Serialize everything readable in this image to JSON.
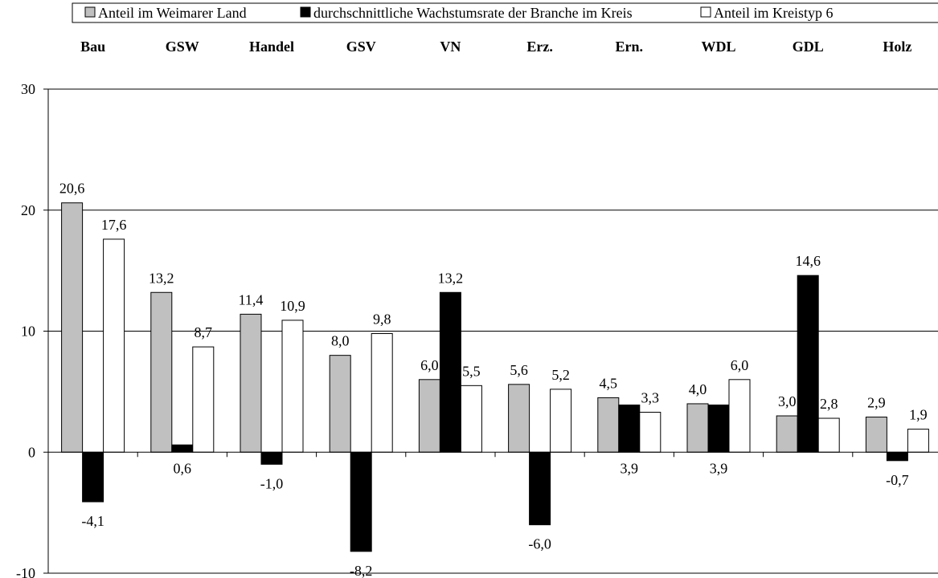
{
  "chart_data": {
    "type": "bar",
    "categories": [
      "Bau",
      "GSW",
      "Handel",
      "GSV",
      "VN",
      "Erz.",
      "Ern.",
      "WDL",
      "GDL",
      "Holz"
    ],
    "series": [
      {
        "name": "Anteil im Weimarer Land",
        "color": "#c0c0c0",
        "values": [
          20.6,
          13.2,
          11.4,
          8.0,
          6.0,
          5.6,
          4.5,
          4.0,
          3.0,
          2.9
        ],
        "labels": [
          "20,6",
          "13,2",
          "11,4",
          "8,0",
          "6,0",
          "5,6",
          "4,5",
          "4,0",
          "3,0",
          "2,9"
        ]
      },
      {
        "name": "durchschnittliche Wachstumsrate der Branche im Kreis",
        "color": "#000000",
        "values": [
          -4.1,
          0.6,
          -1.0,
          -8.2,
          13.2,
          -6.0,
          3.9,
          3.9,
          14.6,
          -0.7
        ],
        "labels": [
          "-4,1",
          "0,6",
          "-1,0",
          "-8,2",
          "13,2",
          "-6,0",
          "3,9",
          "3,9",
          "14,6",
          "-0,7"
        ]
      },
      {
        "name": "Anteil im Kreistyp 6",
        "color": "#ffffff",
        "values": [
          17.6,
          8.7,
          10.9,
          9.8,
          5.5,
          5.2,
          3.3,
          6.0,
          2.8,
          1.9
        ],
        "labels": [
          "17,6",
          "8,7",
          "10,9",
          "9,8",
          "5,5",
          "5,2",
          "3,3",
          "6,0",
          "2,8",
          "1,9"
        ]
      }
    ],
    "ylim": [
      -10,
      30
    ],
    "yticks": [
      -10,
      0,
      10,
      20,
      30
    ],
    "grid": true,
    "legend": "top"
  }
}
